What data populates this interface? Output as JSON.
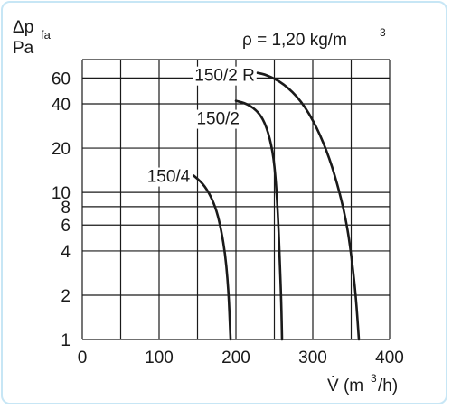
{
  "chart_data": {
    "type": "line",
    "ylabel_line1": "Δp",
    "ylabel_sub": "fa",
    "ylabel_line2": "Pa",
    "xlabel_main": "V̇ (m",
    "xlabel_sup": "3",
    "xlabel_end": "/h)",
    "annotation_main": "ρ = 1,20 kg/m",
    "annotation_sup": "3",
    "x_ticks": [
      0,
      100,
      200,
      300,
      400
    ],
    "x_tick_labels": [
      "0",
      "100",
      "200",
      "300",
      "400"
    ],
    "y_ticks": [
      1,
      2,
      4,
      6,
      8,
      10,
      20,
      40,
      60
    ],
    "y_tick_labels": [
      "1",
      "2",
      "4",
      "6",
      "8",
      "10",
      "20",
      "40",
      "60"
    ],
    "x_grid": [
      0,
      50,
      100,
      150,
      200,
      250,
      300,
      350,
      400
    ],
    "y_grid": [
      1,
      2,
      4,
      6,
      8,
      10,
      20,
      40,
      60
    ],
    "xlim": [
      0,
      400
    ],
    "ylim": [
      1,
      80
    ],
    "yscale": "log",
    "grid": true,
    "colors": {
      "line": "#1a1a1a",
      "grid": "#1a1a1a",
      "frame": "#c7e6f5"
    },
    "series": [
      {
        "name": "150/4",
        "x": [
          145,
          157,
          167,
          175,
          181,
          186,
          189,
          191,
          192,
          193
        ],
        "y": [
          13,
          11.5,
          9.5,
          7.5,
          5.5,
          3.8,
          2.6,
          1.8,
          1.3,
          1.0
        ]
      },
      {
        "name": "150/2",
        "x": [
          200,
          215,
          230,
          240,
          248,
          252,
          255,
          257,
          259,
          260
        ],
        "y": [
          42,
          40,
          35,
          28,
          19,
          12,
          6.5,
          3.5,
          1.8,
          1.0
        ]
      },
      {
        "name": "150/2 R",
        "x": [
          228,
          240,
          262,
          285,
          305,
          322,
          335,
          344,
          350,
          356,
          360
        ],
        "y": [
          65,
          63,
          55,
          42,
          28,
          17,
          10,
          6.2,
          3.8,
          2.0,
          1.0
        ]
      }
    ]
  }
}
